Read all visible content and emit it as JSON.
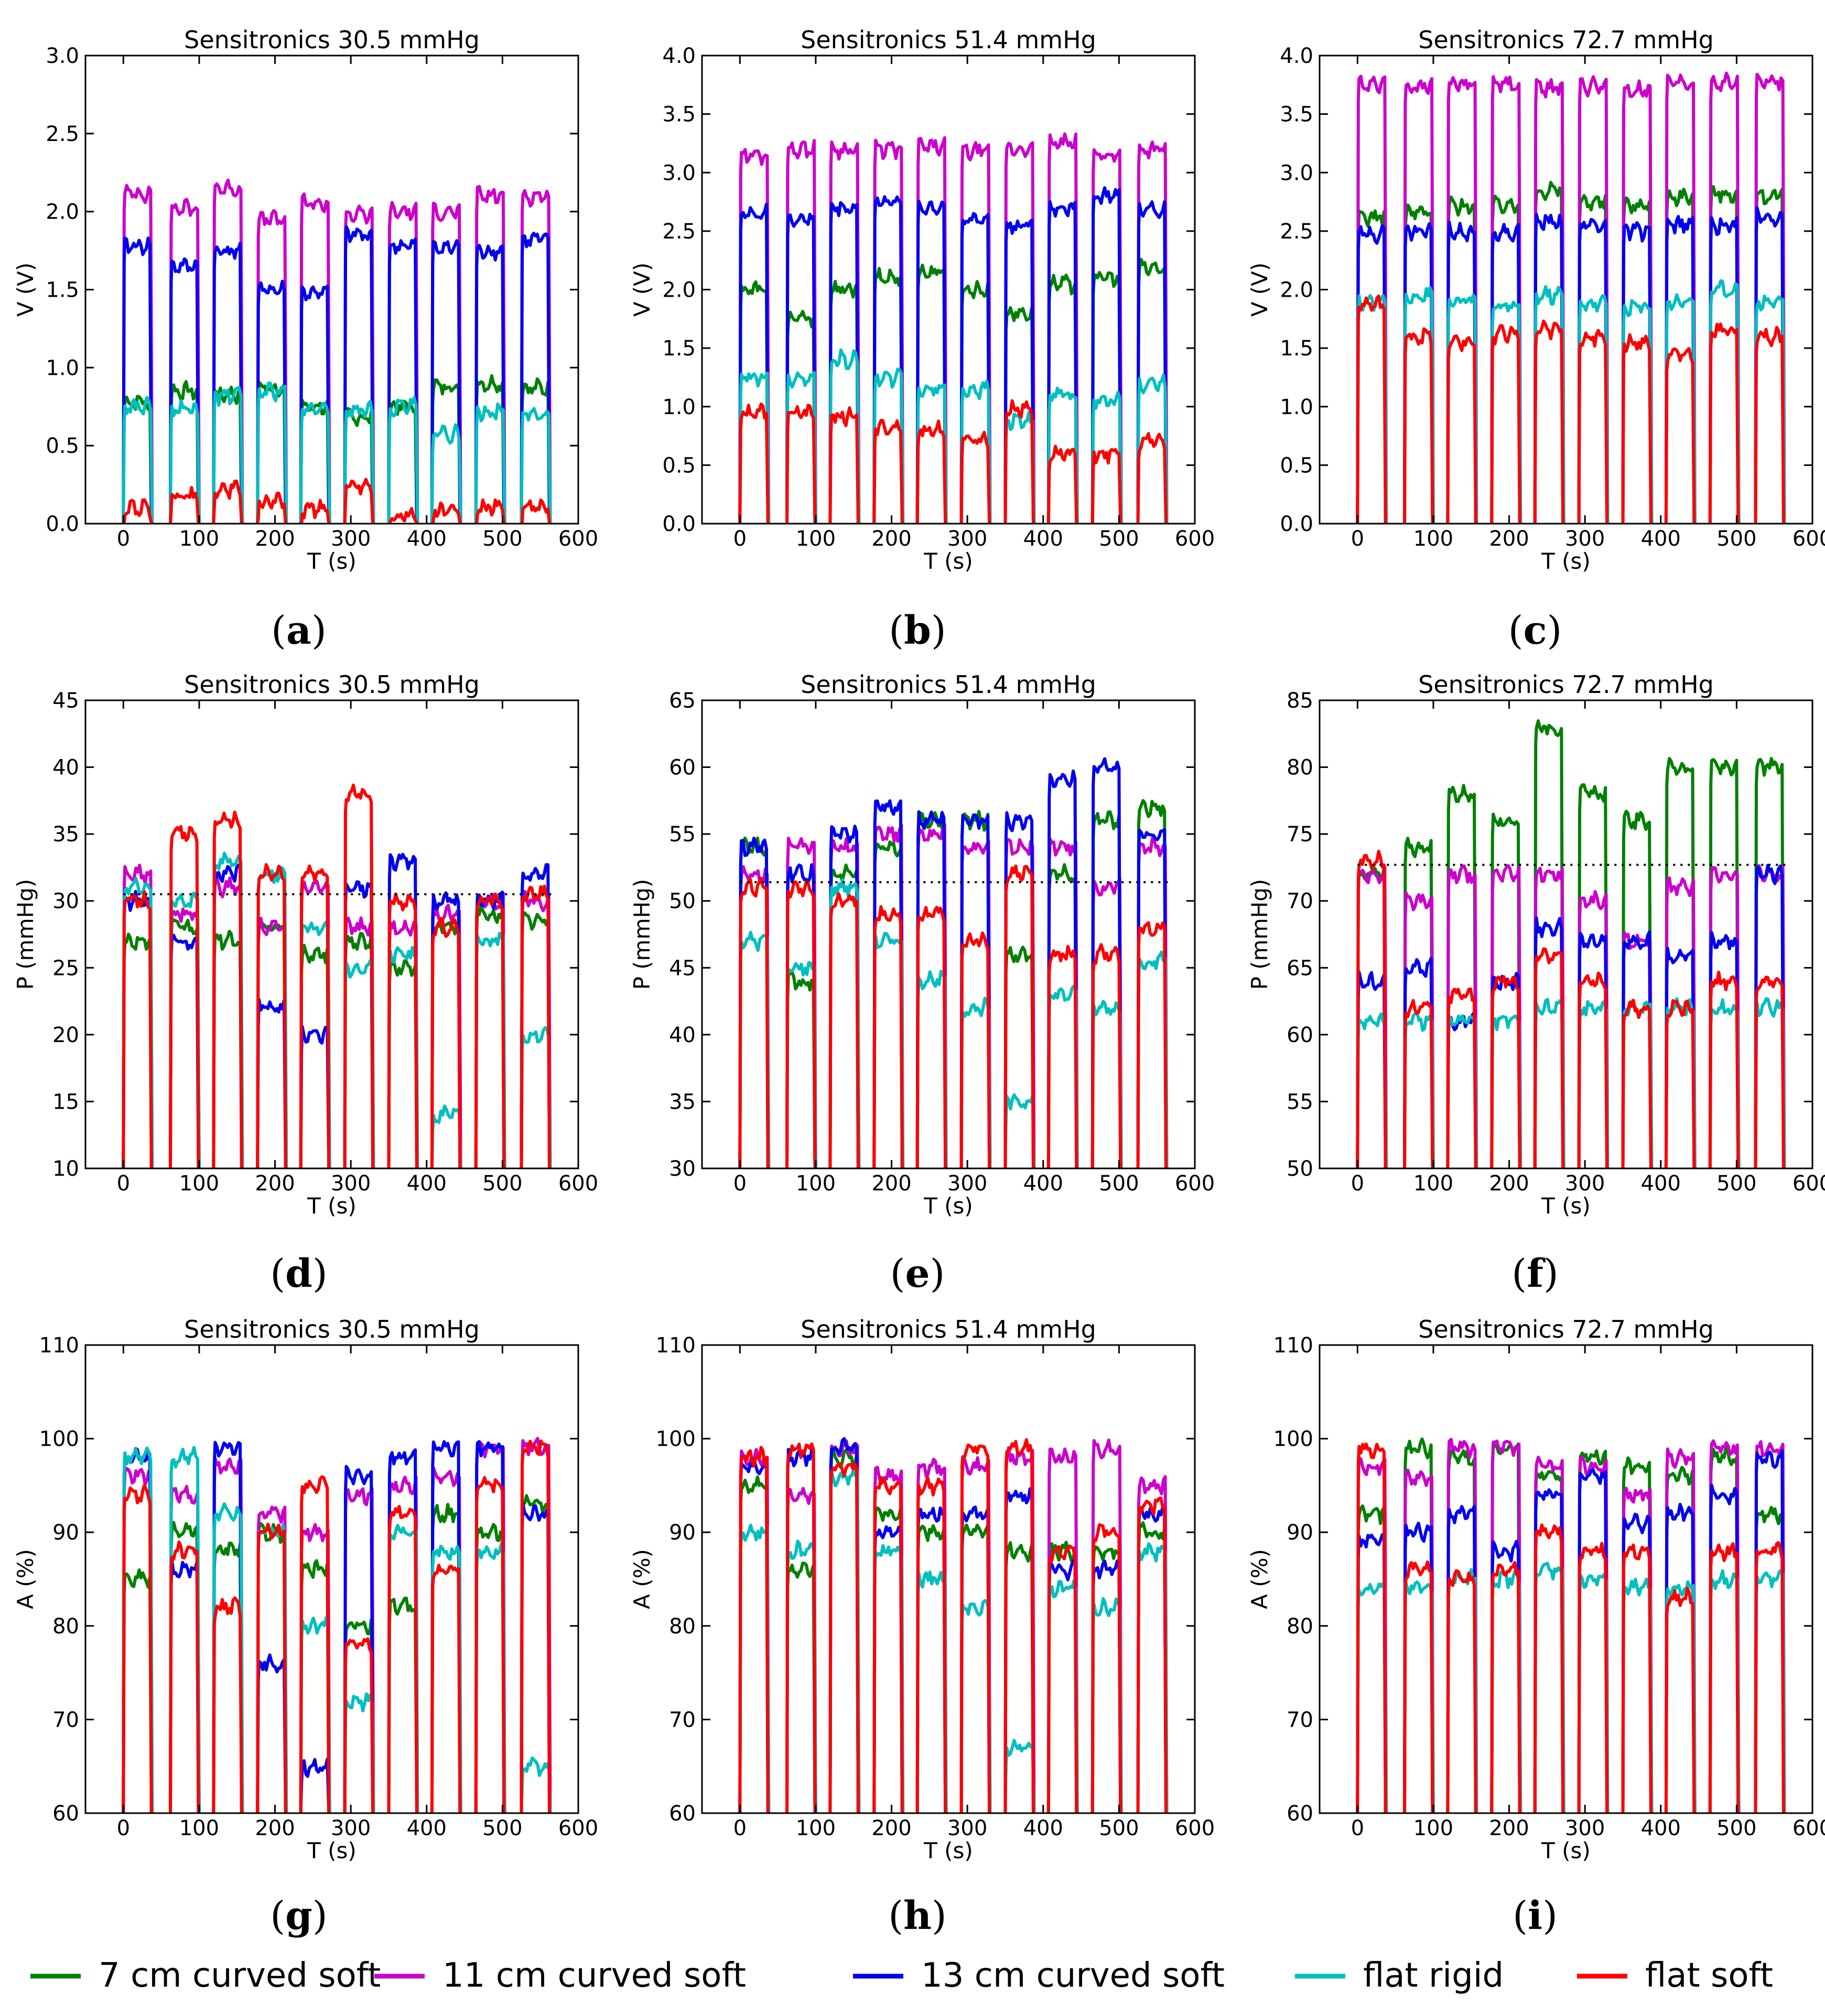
{
  "chart_data": [
    {
      "id": "a",
      "panel_label": "a",
      "type": "line",
      "title": "Sensitronics 30.5 mmHg",
      "xlabel": "T (s)",
      "ylabel": "V (V)",
      "xlim": [
        -50,
        600
      ],
      "ylim": [
        0,
        3.0
      ],
      "xticks": [
        "0",
        "100",
        "200",
        "300",
        "400",
        "500",
        "600"
      ],
      "yticks": [
        "0.0",
        "0.5",
        "1.0",
        "1.5",
        "2.0",
        "2.5",
        "3.0"
      ],
      "series": [
        {
          "name": "7 cm curved soft",
          "color": "#008000",
          "levels": [
            0.78,
            0.85,
            0.83,
            0.87,
            0.75,
            0.68,
            0.75,
            0.88,
            0.9,
            0.87
          ]
        },
        {
          "name": "11 cm curved soft",
          "color": "#cc00cc",
          "levels": [
            2.12,
            2.02,
            2.15,
            1.95,
            2.05,
            1.98,
            2.0,
            2.0,
            2.1,
            2.1
          ]
        },
        {
          "name": "13 cm curved soft",
          "color": "#0000ee",
          "levels": [
            1.78,
            1.65,
            1.75,
            1.5,
            1.48,
            1.85,
            1.78,
            1.77,
            1.75,
            1.82
          ]
        },
        {
          "name": "flat rigid",
          "color": "#00bfbf",
          "levels": [
            0.75,
            0.73,
            0.82,
            0.85,
            0.73,
            0.73,
            0.75,
            0.57,
            0.72,
            0.7
          ]
        },
        {
          "name": "flat soft",
          "color": "#ff0000",
          "levels": [
            0.1,
            0.18,
            0.22,
            0.14,
            0.1,
            0.25,
            0.05,
            0.08,
            0.1,
            0.1
          ]
        }
      ]
    },
    {
      "id": "b",
      "panel_label": "b",
      "type": "line",
      "title": "Sensitronics 51.4 mmHg",
      "xlabel": "T (s)",
      "ylabel": "V (V)",
      "xlim": [
        -50,
        600
      ],
      "ylim": [
        0,
        4.0
      ],
      "xticks": [
        "0",
        "100",
        "200",
        "300",
        "400",
        "500",
        "600"
      ],
      "yticks": [
        "0.0",
        "0.5",
        "1.0",
        "1.5",
        "2.0",
        "2.5",
        "3.0",
        "3.5",
        "4.0"
      ],
      "series": [
        {
          "name": "7 cm curved soft",
          "color": "#008000",
          "levels": [
            2.0,
            1.75,
            2.0,
            2.1,
            2.15,
            2.0,
            1.8,
            2.05,
            2.1,
            2.18
          ]
        },
        {
          "name": "11 cm curved soft",
          "color": "#cc00cc",
          "levels": [
            3.15,
            3.2,
            3.2,
            3.2,
            3.22,
            3.18,
            3.2,
            3.25,
            3.15,
            3.2
          ]
        },
        {
          "name": "13 cm curved soft",
          "color": "#0000ee",
          "levels": [
            2.65,
            2.6,
            2.7,
            2.75,
            2.7,
            2.6,
            2.55,
            2.7,
            2.8,
            2.68
          ]
        },
        {
          "name": "flat rigid",
          "color": "#00bfbf",
          "levels": [
            1.25,
            1.25,
            1.4,
            1.25,
            1.15,
            1.15,
            0.88,
            1.1,
            1.05,
            1.2
          ]
        },
        {
          "name": "flat soft",
          "color": "#ff0000",
          "levels": [
            0.95,
            0.95,
            0.92,
            0.82,
            0.8,
            0.72,
            0.98,
            0.6,
            0.6,
            0.7
          ]
        }
      ]
    },
    {
      "id": "c",
      "panel_label": "c",
      "type": "line",
      "title": "Sensitronics 72.7 mmHg",
      "xlabel": "T (s)",
      "ylabel": "V (V)",
      "xlim": [
        -50,
        600
      ],
      "ylim": [
        0,
        4.0
      ],
      "xticks": [
        "0",
        "100",
        "200",
        "300",
        "400",
        "500",
        "600"
      ],
      "yticks": [
        "0.0",
        "0.5",
        "1.0",
        "1.5",
        "2.0",
        "2.5",
        "3.0",
        "3.5",
        "4.0"
      ],
      "series": [
        {
          "name": "7 cm curved soft",
          "color": "#008000",
          "levels": [
            2.62,
            2.66,
            2.72,
            2.72,
            2.85,
            2.75,
            2.72,
            2.8,
            2.82,
            2.8
          ]
        },
        {
          "name": "11 cm curved soft",
          "color": "#cc00cc",
          "levels": [
            3.76,
            3.74,
            3.76,
            3.76,
            3.72,
            3.74,
            3.7,
            3.76,
            3.77,
            3.78
          ]
        },
        {
          "name": "13 cm curved soft",
          "color": "#0000ee",
          "levels": [
            2.48,
            2.5,
            2.5,
            2.48,
            2.58,
            2.55,
            2.5,
            2.55,
            2.55,
            2.62
          ]
        },
        {
          "name": "flat rigid",
          "color": "#00bfbf",
          "levels": [
            1.9,
            1.95,
            1.9,
            1.85,
            1.95,
            1.88,
            1.85,
            1.9,
            2.0,
            1.9
          ]
        },
        {
          "name": "flat soft",
          "color": "#ff0000",
          "levels": [
            1.87,
            1.6,
            1.55,
            1.62,
            1.65,
            1.6,
            1.55,
            1.45,
            1.65,
            1.6
          ]
        }
      ]
    },
    {
      "id": "d",
      "panel_label": "d",
      "type": "line",
      "title": "Sensitronics 30.5 mmHg",
      "xlabel": "T (s)",
      "ylabel": "P (mmHg)",
      "xlim": [
        -50,
        600
      ],
      "ylim": [
        10,
        45
      ],
      "reference": 30.5,
      "xticks": [
        "0",
        "100",
        "200",
        "300",
        "400",
        "500",
        "600"
      ],
      "yticks": [
        "10",
        "15",
        "20",
        "25",
        "30",
        "35",
        "40",
        "45"
      ],
      "series": [
        {
          "name": "7 cm curved soft",
          "color": "#008000",
          "levels": [
            27,
            28,
            27,
            28,
            26,
            27,
            25,
            28,
            29,
            28.5
          ]
        },
        {
          "name": "11 cm curved soft",
          "color": "#cc00cc",
          "levels": [
            32,
            29,
            31,
            28,
            31,
            28,
            28,
            29,
            30,
            30
          ]
        },
        {
          "name": "13 cm curved soft",
          "color": "#0000ee",
          "levels": [
            30,
            27,
            32,
            22,
            20,
            31,
            33,
            30,
            30,
            32
          ]
        },
        {
          "name": "flat rigid",
          "color": "#00bfbf",
          "levels": [
            31,
            30,
            33,
            32,
            28,
            25,
            26,
            14,
            27,
            20
          ]
        },
        {
          "name": "flat soft",
          "color": "#ff0000",
          "levels": [
            30,
            35,
            36,
            32,
            32,
            38,
            30,
            28,
            30,
            30.5
          ]
        }
      ]
    },
    {
      "id": "e",
      "panel_label": "e",
      "type": "line",
      "title": "Sensitronics 51.4 mmHg",
      "xlabel": "T (s)",
      "ylabel": "P (mmHg)",
      "xlim": [
        -50,
        600
      ],
      "ylim": [
        30,
        65
      ],
      "reference": 51.4,
      "xticks": [
        "0",
        "100",
        "200",
        "300",
        "400",
        "500",
        "600"
      ],
      "yticks": [
        "30",
        "35",
        "40",
        "45",
        "50",
        "55",
        "60",
        "65"
      ],
      "series": [
        {
          "name": "7 cm curved soft",
          "color": "#008000",
          "levels": [
            54,
            44,
            52,
            54,
            56,
            56,
            46,
            52,
            56,
            57
          ]
        },
        {
          "name": "11 cm curved soft",
          "color": "#cc00cc",
          "levels": [
            52,
            54,
            54,
            55,
            55,
            54,
            54,
            54,
            51,
            54
          ]
        },
        {
          "name": "13 cm curved soft",
          "color": "#0000ee",
          "levels": [
            54,
            52,
            55,
            57,
            56,
            56,
            56,
            59,
            60,
            55
          ]
        },
        {
          "name": "flat rigid",
          "color": "#00bfbf",
          "levels": [
            47,
            45,
            51,
            47,
            44,
            42,
            35,
            43,
            42,
            45.5
          ]
        },
        {
          "name": "flat soft",
          "color": "#ff0000",
          "levels": [
            51,
            51,
            50,
            49,
            49,
            47,
            52,
            46,
            46,
            48
          ]
        }
      ]
    },
    {
      "id": "f",
      "panel_label": "f",
      "type": "line",
      "title": "Sensitronics 72.7 mmHg",
      "xlabel": "T (s)",
      "ylabel": "P (mmHg)",
      "xlim": [
        -50,
        600
      ],
      "ylim": [
        50,
        85
      ],
      "reference": 72.7,
      "xticks": [
        "0",
        "100",
        "200",
        "300",
        "400",
        "500",
        "600"
      ],
      "yticks": [
        "50",
        "55",
        "60",
        "65",
        "70",
        "75",
        "80",
        "85"
      ],
      "series": [
        {
          "name": "7 cm curved soft",
          "color": "#008000",
          "levels": [
            72,
            74,
            78,
            76,
            83,
            78,
            76,
            80,
            80,
            80
          ]
        },
        {
          "name": "11 cm curved soft",
          "color": "#cc00cc",
          "levels": [
            72,
            70,
            72,
            72,
            72,
            70,
            67,
            71,
            72,
            72
          ]
        },
        {
          "name": "13 cm curved soft",
          "color": "#0000ee",
          "levels": [
            64,
            65,
            61,
            64,
            68,
            67,
            67,
            66,
            67,
            72
          ]
        },
        {
          "name": "flat rigid",
          "color": "#00bfbf",
          "levels": [
            61,
            61,
            61,
            61,
            62,
            62,
            62,
            62,
            62,
            62
          ]
        },
        {
          "name": "flat soft",
          "color": "#ff0000",
          "levels": [
            73,
            62,
            63,
            64,
            66,
            64,
            62,
            62,
            64,
            64
          ]
        }
      ]
    },
    {
      "id": "g",
      "panel_label": "g",
      "type": "line",
      "title": "Sensitronics 30.5 mmHg",
      "xlabel": "T (s)",
      "ylabel": "A (%)",
      "xlim": [
        -50,
        600
      ],
      "ylim": [
        60,
        110
      ],
      "xticks": [
        "0",
        "100",
        "200",
        "300",
        "400",
        "500",
        "600"
      ],
      "yticks": [
        "60",
        "70",
        "80",
        "90",
        "100",
        "110"
      ],
      "series": [
        {
          "name": "7 cm curved soft",
          "color": "#008000",
          "levels": [
            85,
            90,
            88,
            90,
            86,
            80,
            82,
            92,
            90,
            93
          ]
        },
        {
          "name": "11 cm curved soft",
          "color": "#cc00cc",
          "levels": [
            96,
            94,
            97,
            92,
            90,
            94,
            95,
            96,
            99,
            99
          ]
        },
        {
          "name": "13 cm curved soft",
          "color": "#0000ee",
          "levels": [
            98,
            86,
            99,
            76,
            65,
            96,
            98,
            99,
            99,
            92
          ]
        },
        {
          "name": "flat rigid",
          "color": "#00bfbf",
          "levels": [
            98,
            98,
            92,
            90,
            80,
            72,
            90,
            88,
            88,
            65
          ]
        },
        {
          "name": "flat soft",
          "color": "#ff0000",
          "levels": [
            94,
            88,
            82,
            90,
            95,
            78,
            92,
            86,
            95,
            99
          ]
        }
      ]
    },
    {
      "id": "h",
      "panel_label": "h",
      "type": "line",
      "title": "Sensitronics 51.4 mmHg",
      "xlabel": "T (s)",
      "ylabel": "A (%)",
      "xlim": [
        -50,
        600
      ],
      "ylim": [
        60,
        110
      ],
      "xticks": [
        "0",
        "100",
        "200",
        "300",
        "400",
        "500",
        "600"
      ],
      "yticks": [
        "60",
        "70",
        "80",
        "90",
        "100",
        "110"
      ],
      "series": [
        {
          "name": "7 cm curved soft",
          "color": "#008000",
          "levels": [
            95,
            86,
            98,
            92,
            90,
            90,
            88,
            88,
            88,
            90
          ]
        },
        {
          "name": "11 cm curved soft",
          "color": "#cc00cc",
          "levels": [
            98,
            94,
            99,
            96,
            97,
            97,
            98,
            98,
            99,
            95
          ]
        },
        {
          "name": "13 cm curved soft",
          "color": "#0000ee",
          "levels": [
            97,
            98,
            99,
            90,
            92,
            92,
            94,
            86,
            86,
            92
          ]
        },
        {
          "name": "flat rigid",
          "color": "#00bfbf",
          "levels": [
            90,
            88,
            96,
            88,
            85,
            82,
            67,
            84,
            82,
            88
          ]
        },
        {
          "name": "flat soft",
          "color": "#ff0000",
          "levels": [
            98,
            99,
            97,
            95,
            95,
            99,
            99,
            88,
            90,
            93
          ]
        }
      ]
    },
    {
      "id": "i",
      "panel_label": "i",
      "type": "line",
      "title": "Sensitronics 72.7 mmHg",
      "xlabel": "T (s)",
      "ylabel": "A (%)",
      "xlim": [
        -50,
        600
      ],
      "ylim": [
        60,
        110
      ],
      "xticks": [
        "0",
        "100",
        "200",
        "300",
        "400",
        "500",
        "600"
      ],
      "yticks": [
        "60",
        "70",
        "80",
        "90",
        "100",
        "110"
      ],
      "series": [
        {
          "name": "7 cm curved soft",
          "color": "#008000",
          "levels": [
            92,
            99,
            98,
            99,
            96,
            98,
            97,
            96,
            98,
            92
          ]
        },
        {
          "name": "11 cm curved soft",
          "color": "#cc00cc",
          "levels": [
            97,
            96,
            99,
            99,
            97,
            97,
            94,
            98,
            99,
            99
          ]
        },
        {
          "name": "13 cm curved soft",
          "color": "#0000ee",
          "levels": [
            89,
            90,
            92,
            88,
            94,
            96,
            91,
            92,
            94,
            98
          ]
        },
        {
          "name": "flat rigid",
          "color": "#00bfbf",
          "levels": [
            84,
            84,
            85,
            85,
            86,
            85,
            84,
            84,
            85,
            85
          ]
        },
        {
          "name": "flat soft",
          "color": "#ff0000",
          "levels": [
            99,
            86,
            85,
            86,
            90,
            88,
            88,
            83,
            88,
            88
          ]
        }
      ]
    }
  ],
  "legend": [
    {
      "label": "7 cm curved soft",
      "color": "#008000"
    },
    {
      "label": "11  cm curved soft",
      "color": "#cc00cc"
    },
    {
      "label": "13 cm curved soft",
      "color": "#0000ee"
    },
    {
      "label": "flat rigid",
      "color": "#00bfbf"
    },
    {
      "label": "flat soft",
      "color": "#ff0000"
    }
  ]
}
